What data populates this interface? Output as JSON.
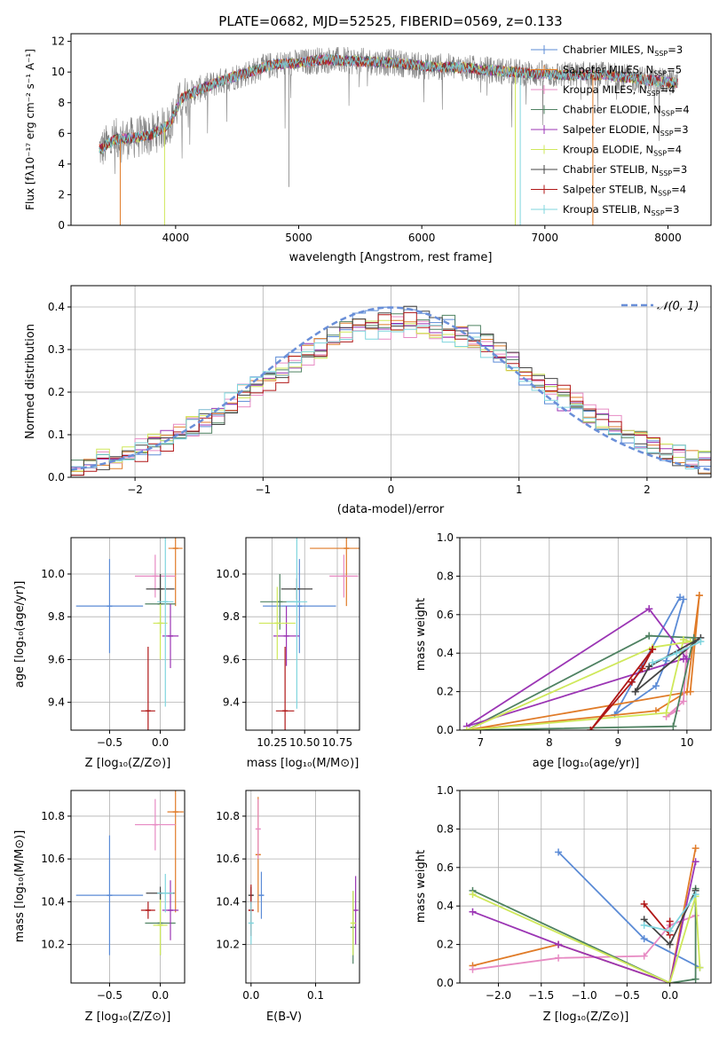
{
  "figure": {
    "title": "PLATE=0682, MJD=52525, FIBERID=0569, z=0.133"
  },
  "colors": {
    "chabrier_miles": "#5b8bd6",
    "salpeter_miles": "#e07b28",
    "kroupa_miles": "#e78ac3",
    "chabrier_elodie": "#4f8262",
    "salpeter_elodie": "#9b35b4",
    "kroupa_elodie": "#cfe85a",
    "chabrier_stelib": "#444444",
    "salpeter_stelib": "#b01717",
    "kroupa_stelib": "#7fd5de",
    "data": "#808080",
    "normal_curve": "#6a8fd8"
  },
  "panels": {
    "spectrum": {
      "xlabel": "wavelength [Angstrom, rest frame]",
      "ylabel": "Flux [fλ10⁻¹⁷ erg cm⁻² s⁻¹ A⁻¹]",
      "legend": [
        {
          "label": "Chabrier MILES, N",
          "sub": "SSP",
          "suffix": "=3",
          "color": "#5b8bd6"
        },
        {
          "label": "Salpeter MILES, N",
          "sub": "SSP",
          "suffix": "=5",
          "color": "#e07b28"
        },
        {
          "label": "Kroupa MILES, N",
          "sub": "SSP",
          "suffix": "=4",
          "color": "#e78ac3"
        },
        {
          "label": "Chabrier ELODIE, N",
          "sub": "SSP",
          "suffix": "=4",
          "color": "#4f8262"
        },
        {
          "label": "Salpeter ELODIE, N",
          "sub": "SSP",
          "suffix": "=3",
          "color": "#9b35b4"
        },
        {
          "label": "Kroupa ELODIE, N",
          "sub": "SSP",
          "suffix": "=4",
          "color": "#cfe85a"
        },
        {
          "label": "Chabrier STELIB, N",
          "sub": "SSP",
          "suffix": "=3",
          "color": "#444444"
        },
        {
          "label": "Salpeter STELIB, N",
          "sub": "SSP",
          "suffix": "=4",
          "color": "#b01717"
        },
        {
          "label": "Kroupa STELIB, N",
          "sub": "SSP",
          "suffix": "=3",
          "color": "#7fd5de"
        }
      ]
    },
    "histogram": {
      "xlabel": "(data-model)/error",
      "ylabel": "Normed distribution",
      "legend_label": "𝒩(0, 1)"
    },
    "age_z": {
      "xlabel": "Z [log₁₀(Z/Z⊙)]",
      "ylabel": "age  [log₁₀(age/yr)]"
    },
    "age_mass": {
      "xlabel": "mass [log₁₀(M/M⊙)]"
    },
    "mw_age": {
      "xlabel": "age  [log₁₀(age/yr)]",
      "ylabel": "mass weight"
    },
    "mass_z": {
      "xlabel": "Z [log₁₀(Z/Z⊙)]",
      "ylabel": "mass [log₁₀(M/M⊙)]"
    },
    "mass_ebv": {
      "xlabel": "E(B-V)"
    },
    "mw_z": {
      "xlabel": "Z [log₁₀(Z/Z⊙)]",
      "ylabel": "mass weight"
    }
  },
  "chart_data": [
    {
      "type": "line",
      "title": "PLATE=0682, MJD=52525, FIBERID=0569, z=0.133",
      "xlabel": "wavelength [Angstrom, rest frame]",
      "ylabel": "Flux [fλ10⁻¹⁷ erg cm⁻² s⁻¹ A⁻¹]",
      "xlim": [
        3150,
        8350
      ],
      "ylim": [
        0,
        12.5
      ],
      "xticks": [
        4000,
        5000,
        6000,
        7000,
        8000
      ],
      "yticks": [
        0,
        2,
        4,
        6,
        8,
        10,
        12
      ],
      "continuum": {
        "wavelength": [
          3400,
          3500,
          3650,
          3800,
          3950,
          4050,
          4200,
          4400,
          4600,
          4800,
          5000,
          5200,
          5500,
          5800,
          6000,
          6300,
          6600,
          6900,
          7200,
          7500,
          7800,
          8050
        ],
        "flux": [
          5.0,
          5.6,
          5.7,
          5.9,
          6.6,
          8.3,
          8.9,
          9.5,
          10.0,
          10.5,
          10.6,
          10.8,
          10.7,
          10.6,
          10.4,
          10.3,
          10.1,
          9.9,
          9.8,
          9.8,
          9.5,
          9.3
        ]
      },
      "grid": false,
      "legend_position": "top-right"
    },
    {
      "type": "histogram",
      "xlabel": "(data-model)/error",
      "ylabel": "Normed distribution",
      "xlim": [
        -2.5,
        2.5
      ],
      "ylim": [
        0,
        0.45
      ],
      "xticks": [
        -2,
        -1,
        0,
        1,
        2
      ],
      "yticks": [
        0.0,
        0.1,
        0.2,
        0.3,
        0.4
      ],
      "bins": 50,
      "reference_curve": {
        "name": "𝒩(0, 1)",
        "mean": 0,
        "sigma": 1
      },
      "legend_position": "top-right",
      "grid": true
    },
    {
      "type": "scatter",
      "xlabel": "Z [log₁₀(Z/Z⊙)]",
      "ylabel": "age  [log₁₀(age/yr)]",
      "xlim": [
        -0.88,
        0.24
      ],
      "ylim": [
        9.27,
        10.17
      ],
      "xticks": [
        -0.5,
        0.0
      ],
      "yticks": [
        9.4,
        9.6,
        9.8,
        10.0
      ],
      "series": [
        {
          "color": "#5b8bd6",
          "x": -0.5,
          "y": 9.85,
          "xerr": 0.33,
          "yerr": 0.22
        },
        {
          "color": "#e07b28",
          "x": 0.15,
          "y": 10.12,
          "xerr": 0.07,
          "yerr": 0.27
        },
        {
          "color": "#e78ac3",
          "x": -0.05,
          "y": 9.99,
          "xerr": 0.2,
          "yerr": 0.1
        },
        {
          "color": "#4f8262",
          "x": 0.0,
          "y": 9.86,
          "xerr": 0.15,
          "yerr": 0.14
        },
        {
          "color": "#9b35b4",
          "x": 0.1,
          "y": 9.71,
          "xerr": 0.08,
          "yerr": 0.15
        },
        {
          "color": "#cfe85a",
          "x": 0.0,
          "y": 9.77,
          "xerr": 0.07,
          "yerr": 0.17
        },
        {
          "color": "#444444",
          "x": 0.0,
          "y": 9.93,
          "xerr": 0.14,
          "yerr": 0.07
        },
        {
          "color": "#b01717",
          "x": -0.12,
          "y": 9.36,
          "xerr": 0.07,
          "yerr": 0.3
        },
        {
          "color": "#7fd5de",
          "x": 0.05,
          "y": 9.87,
          "xerr": 0.08,
          "yerr": 0.49
        }
      ]
    },
    {
      "type": "scatter",
      "xlabel": "mass [log₁₀(M/M⊙)]",
      "xlim": [
        10.05,
        10.92
      ],
      "ylim": [
        9.27,
        10.17
      ],
      "xticks": [
        10.25,
        10.5,
        10.75
      ],
      "yticks": [
        9.4,
        9.6,
        9.8,
        10.0
      ],
      "series": [
        {
          "color": "#5b8bd6",
          "x": 10.46,
          "y": 9.85,
          "xerr": 0.28,
          "yerr": 0.22
        },
        {
          "color": "#e07b28",
          "x": 10.82,
          "y": 10.12,
          "xerr": 0.28,
          "yerr": 0.27
        },
        {
          "color": "#e78ac3",
          "x": 10.8,
          "y": 9.99,
          "xerr": 0.11,
          "yerr": 0.1
        },
        {
          "color": "#4f8262",
          "x": 10.31,
          "y": 9.87,
          "xerr": 0.15,
          "yerr": 0.13
        },
        {
          "color": "#9b35b4",
          "x": 10.36,
          "y": 9.71,
          "xerr": 0.1,
          "yerr": 0.14
        },
        {
          "color": "#cfe85a",
          "x": 10.29,
          "y": 9.77,
          "xerr": 0.14,
          "yerr": 0.17
        },
        {
          "color": "#444444",
          "x": 10.44,
          "y": 9.93,
          "xerr": 0.12,
          "yerr": 0.05
        },
        {
          "color": "#b01717",
          "x": 10.35,
          "y": 9.36,
          "xerr": 0.07,
          "yerr": 0.3
        },
        {
          "color": "#7fd5de",
          "x": 10.44,
          "y": 9.87,
          "xerr": 0.08,
          "yerr": 0.5
        }
      ]
    },
    {
      "type": "line",
      "xlabel": "age  [log₁₀(age/yr)]",
      "ylabel": "mass weight",
      "xlim": [
        6.7,
        10.35
      ],
      "ylim": [
        0,
        1
      ],
      "xticks": [
        7,
        8,
        9,
        10
      ],
      "yticks": [
        0.0,
        0.2,
        0.4,
        0.6,
        0.8,
        1.0
      ],
      "series": [
        {
          "color": "#5b8bd6",
          "x": [
            9.9,
            8.95,
            9.55,
            9.7,
            9.95
          ],
          "y": [
            0.69,
            0.08,
            0.23,
            0.36,
            0.68
          ]
        },
        {
          "color": "#e07b28",
          "x": [
            10.18,
            10.0,
            9.55,
            6.8,
            10.05,
            10.18
          ],
          "y": [
            0.7,
            0.2,
            0.1,
            0.0,
            0.2,
            0.7
          ]
        },
        {
          "color": "#e78ac3",
          "x": [
            9.85,
            9.7,
            9.95,
            10.0
          ],
          "y": [
            0.1,
            0.07,
            0.15,
            0.45
          ]
        },
        {
          "color": "#4f8262",
          "x": [
            9.45,
            6.8,
            9.8,
            10.1,
            9.45
          ],
          "y": [
            0.49,
            0.0,
            0.02,
            0.48,
            0.49
          ]
        },
        {
          "color": "#9b35b4",
          "x": [
            9.45,
            6.8,
            9.95,
            10.0,
            9.45
          ],
          "y": [
            0.63,
            0.02,
            0.37,
            0.37,
            0.63
          ]
        },
        {
          "color": "#cfe85a",
          "x": [
            9.5,
            6.8,
            9.7,
            9.95,
            10.05,
            9.5
          ],
          "y": [
            0.43,
            0.0,
            0.09,
            0.47,
            0.46,
            0.43
          ]
        },
        {
          "color": "#444444",
          "x": [
            9.25,
            9.45,
            10.2,
            9.25
          ],
          "y": [
            0.2,
            0.33,
            0.48,
            0.2
          ]
        },
        {
          "color": "#b01717",
          "x": [
            9.5,
            8.6,
            9.2,
            9.35,
            9.5
          ],
          "y": [
            0.42,
            0.0,
            0.25,
            0.32,
            0.42
          ]
        },
        {
          "color": "#7fd5de",
          "x": [
            9.5,
            9.85,
            10.2
          ],
          "y": [
            0.35,
            0.4,
            0.46
          ]
        }
      ]
    },
    {
      "type": "scatter",
      "xlabel": "Z [log₁₀(Z/Z⊙)]",
      "ylabel": "mass [log₁₀(M/M⊙)]",
      "xlim": [
        -0.88,
        0.24
      ],
      "ylim": [
        10.02,
        10.92
      ],
      "xticks": [
        -0.5,
        0.0
      ],
      "yticks": [
        10.2,
        10.4,
        10.6,
        10.8
      ],
      "series": [
        {
          "color": "#5b8bd6",
          "x": -0.5,
          "y": 10.43,
          "xerr": 0.33,
          "yerr": 0.28
        },
        {
          "color": "#e07b28",
          "x": 0.15,
          "y": 10.82,
          "xerr": 0.08,
          "yerr": 0.47
        },
        {
          "color": "#e78ac3",
          "x": -0.05,
          "y": 10.76,
          "xerr": 0.2,
          "yerr": 0.12
        },
        {
          "color": "#4f8262",
          "x": 0.0,
          "y": 10.3,
          "xerr": 0.15,
          "yerr": 0.15
        },
        {
          "color": "#9b35b4",
          "x": 0.1,
          "y": 10.36,
          "xerr": 0.08,
          "yerr": 0.14
        },
        {
          "color": "#cfe85a",
          "x": 0.0,
          "y": 10.29,
          "xerr": 0.07,
          "yerr": 0.14
        },
        {
          "color": "#444444",
          "x": 0.0,
          "y": 10.44,
          "xerr": 0.14,
          "yerr": 0.03
        },
        {
          "color": "#b01717",
          "x": -0.12,
          "y": 10.36,
          "xerr": 0.07,
          "yerr": 0.04
        },
        {
          "color": "#7fd5de",
          "x": 0.05,
          "y": 10.44,
          "xerr": 0.08,
          "yerr": 0.09
        }
      ]
    },
    {
      "type": "scatter",
      "xlabel": "E(B-V)",
      "xlim": [
        -0.008,
        0.168
      ],
      "ylim": [
        10.02,
        10.92
      ],
      "xticks": [
        0.0,
        0.1
      ],
      "yticks": [
        10.2,
        10.4,
        10.6,
        10.8
      ],
      "series": [
        {
          "color": "#5b8bd6",
          "x": 0.016,
          "y": 10.43,
          "yerr": 0.11
        },
        {
          "color": "#e07b28",
          "x": 0.011,
          "y": 10.62,
          "yerr": 0.27
        },
        {
          "color": "#e78ac3",
          "x": 0.011,
          "y": 10.74,
          "yerr": 0.14
        },
        {
          "color": "#4f8262",
          "x": 0.158,
          "y": 10.28,
          "yerr": 0.17
        },
        {
          "color": "#9b35b4",
          "x": 0.162,
          "y": 10.36,
          "yerr": 0.16
        },
        {
          "color": "#cfe85a",
          "x": 0.158,
          "y": 10.3,
          "yerr": 0.15
        },
        {
          "color": "#444444",
          "x": 0.0,
          "y": 10.43,
          "yerr": 0.04
        },
        {
          "color": "#b01717",
          "x": 0.0,
          "y": 10.36,
          "yerr": 0.12
        },
        {
          "color": "#7fd5de",
          "x": 0.0,
          "y": 10.3,
          "yerr": 0.1
        }
      ]
    },
    {
      "type": "line",
      "xlabel": "Z [log₁₀(Z/Z⊙)]",
      "ylabel": "mass weight",
      "xlim": [
        -2.45,
        0.48
      ],
      "ylim": [
        0,
        1
      ],
      "xticks": [
        -2.0,
        -1.5,
        -1.0,
        -0.5,
        0.0
      ],
      "yticks": [
        0.0,
        0.2,
        0.4,
        0.6,
        0.8,
        1.0
      ],
      "series": [
        {
          "color": "#5b8bd6",
          "x": [
            -1.3,
            -0.3,
            0.35
          ],
          "y": [
            0.68,
            0.23,
            0.08
          ]
        },
        {
          "color": "#e07b28",
          "x": [
            -2.3,
            -1.3,
            0.0,
            0.3
          ],
          "y": [
            0.09,
            0.2,
            0.0,
            0.7
          ]
        },
        {
          "color": "#e78ac3",
          "x": [
            -2.3,
            -1.3,
            -0.3,
            0.0,
            0.3
          ],
          "y": [
            0.07,
            0.13,
            0.14,
            0.3,
            0.35
          ]
        },
        {
          "color": "#4f8262",
          "x": [
            -2.3,
            0.0,
            0.3,
            0.3
          ],
          "y": [
            0.48,
            0.0,
            0.02,
            0.49
          ]
        },
        {
          "color": "#9b35b4",
          "x": [
            -2.3,
            -1.3,
            0.0,
            0.3
          ],
          "y": [
            0.37,
            0.2,
            0.0,
            0.63
          ]
        },
        {
          "color": "#cfe85a",
          "x": [
            -2.3,
            0.0,
            0.3,
            0.35
          ],
          "y": [
            0.46,
            0.0,
            0.45,
            0.08
          ]
        },
        {
          "color": "#444444",
          "x": [
            -0.3,
            0.0,
            0.3
          ],
          "y": [
            0.33,
            0.2,
            0.48
          ]
        },
        {
          "color": "#b01717",
          "x": [
            -0.3,
            0.0,
            0.0
          ],
          "y": [
            0.41,
            0.25,
            0.32
          ]
        },
        {
          "color": "#7fd5de",
          "x": [
            -0.3,
            0.0,
            0.3
          ],
          "y": [
            0.3,
            0.27,
            0.46
          ]
        }
      ]
    }
  ]
}
